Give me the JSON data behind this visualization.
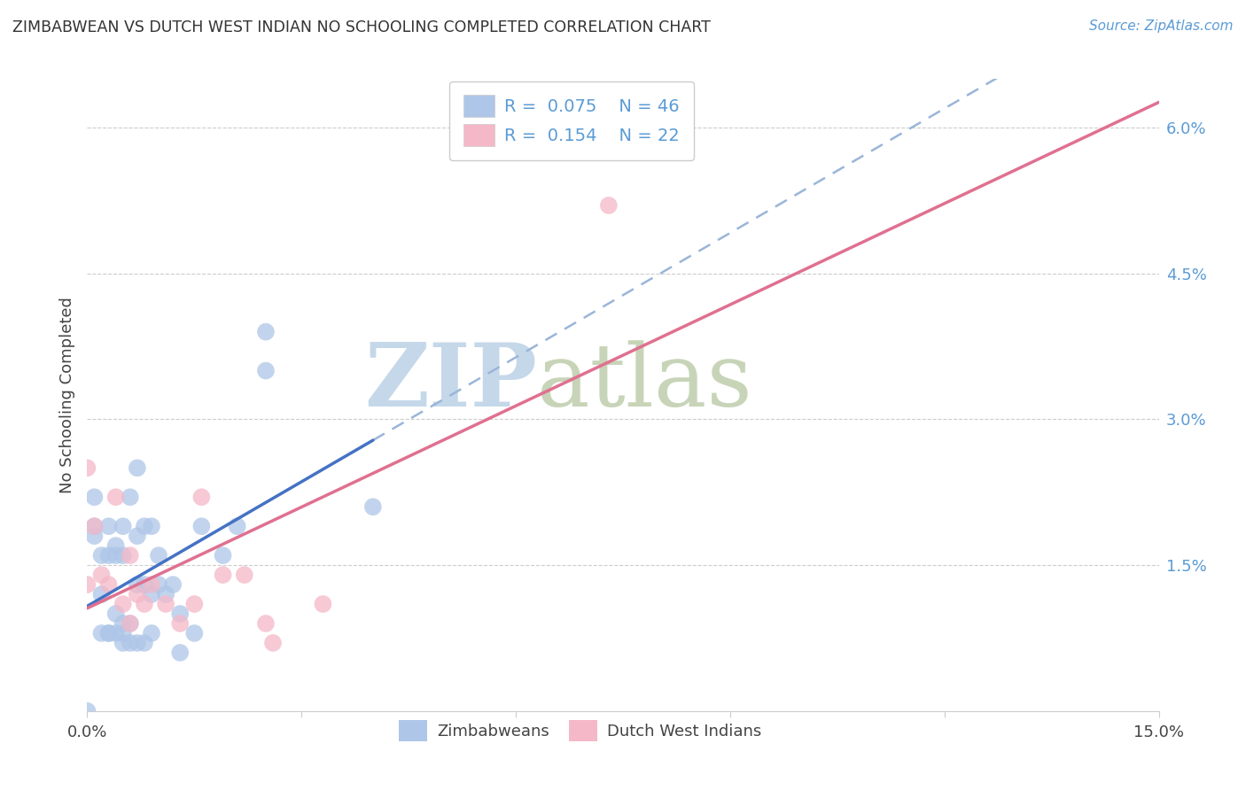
{
  "title": "ZIMBABWEAN VS DUTCH WEST INDIAN NO SCHOOLING COMPLETED CORRELATION CHART",
  "source": "Source: ZipAtlas.com",
  "ylabel": "No Schooling Completed",
  "xlim": [
    0.0,
    0.15
  ],
  "ylim": [
    0.0,
    0.065
  ],
  "color_blue": "#aec6e8",
  "color_pink": "#f4b8c8",
  "line_blue": "#4472c4",
  "line_pink": "#e07090",
  "line_dashed_color": "#9ab5d8",
  "watermark_zip": "ZIP",
  "watermark_atlas": "atlas",
  "watermark_color_zip": "#c8d8e8",
  "watermark_color_atlas": "#c8d0bc",
  "zimbabwean_x": [
    0.0,
    0.001,
    0.001,
    0.001,
    0.002,
    0.002,
    0.002,
    0.003,
    0.003,
    0.003,
    0.003,
    0.004,
    0.004,
    0.004,
    0.004,
    0.005,
    0.005,
    0.005,
    0.005,
    0.005,
    0.006,
    0.006,
    0.006,
    0.007,
    0.007,
    0.007,
    0.007,
    0.008,
    0.008,
    0.008,
    0.009,
    0.009,
    0.009,
    0.01,
    0.01,
    0.011,
    0.012,
    0.013,
    0.013,
    0.015,
    0.016,
    0.019,
    0.021,
    0.025,
    0.025,
    0.04
  ],
  "zimbabwean_y": [
    0.0,
    0.018,
    0.019,
    0.022,
    0.008,
    0.012,
    0.016,
    0.008,
    0.008,
    0.016,
    0.019,
    0.008,
    0.01,
    0.016,
    0.017,
    0.007,
    0.008,
    0.009,
    0.016,
    0.019,
    0.007,
    0.009,
    0.022,
    0.007,
    0.013,
    0.018,
    0.025,
    0.007,
    0.013,
    0.019,
    0.008,
    0.012,
    0.019,
    0.013,
    0.016,
    0.012,
    0.013,
    0.006,
    0.01,
    0.008,
    0.019,
    0.016,
    0.019,
    0.035,
    0.039,
    0.021
  ],
  "dutch_x": [
    0.0,
    0.0,
    0.001,
    0.002,
    0.003,
    0.004,
    0.005,
    0.006,
    0.006,
    0.007,
    0.008,
    0.009,
    0.011,
    0.013,
    0.015,
    0.016,
    0.019,
    0.022,
    0.025,
    0.026,
    0.033,
    0.073
  ],
  "dutch_y": [
    0.013,
    0.025,
    0.019,
    0.014,
    0.013,
    0.022,
    0.011,
    0.009,
    0.016,
    0.012,
    0.011,
    0.013,
    0.011,
    0.009,
    0.011,
    0.022,
    0.014,
    0.014,
    0.009,
    0.007,
    0.011,
    0.052
  ]
}
